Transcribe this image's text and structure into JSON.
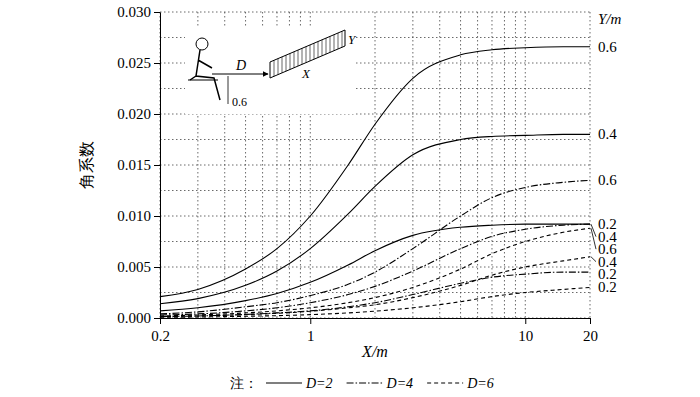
{
  "chart_data": {
    "type": "line",
    "y_label": "角系数",
    "x_label": "X/m",
    "series_title": "Y/m",
    "log": "x",
    "grid": true,
    "xlim": [
      0.2,
      20
    ],
    "ylim": [
      0,
      0.03
    ],
    "xticks": [
      0.2,
      1,
      10,
      20
    ],
    "yticks": [
      {
        "value": 0,
        "label": "0.000"
      },
      {
        "value": 0.005,
        "label": "0.005"
      },
      {
        "value": 0.01,
        "label": "0.010"
      },
      {
        "value": 0.015,
        "label": "0.015"
      },
      {
        "value": 0.02,
        "label": "0.020"
      },
      {
        "value": 0.025,
        "label": "0.025"
      },
      {
        "value": 0.03,
        "label": "0.030"
      }
    ],
    "x_minor_ticks": [
      0.2,
      0.3,
      0.4,
      0.5,
      0.6,
      0.7,
      0.8,
      0.9,
      1,
      2,
      3,
      4,
      5,
      6,
      7,
      8,
      9,
      10,
      20
    ],
    "y_minor_ticks": [
      0,
      0.0025,
      0.005,
      0.0075,
      0.01,
      0.0125,
      0.015,
      0.0175,
      0.02,
      0.0225,
      0.025,
      0.0275,
      0.03
    ],
    "x": [
      0.2,
      0.3,
      0.5,
      0.7,
      1,
      1.5,
      2,
      3,
      5,
      7,
      10,
      15,
      20
    ],
    "series": [
      {
        "name": "0.6",
        "color": "#000000",
        "line_style": "solid",
        "values": [
          0.0021,
          0.0028,
          0.0048,
          0.0068,
          0.01,
          0.015,
          0.019,
          0.0235,
          0.0258,
          0.0263,
          0.0265,
          0.0266,
          0.0266
        ]
      },
      {
        "name": "0.4",
        "color": "#000000",
        "line_style": "solid",
        "values": [
          0.0014,
          0.0019,
          0.0032,
          0.0046,
          0.0068,
          0.0102,
          0.0129,
          0.016,
          0.0175,
          0.0178,
          0.0179,
          0.018,
          0.018
        ]
      },
      {
        "name": "0.6",
        "color": "#000000",
        "line_style": "dashdot",
        "values": [
          0.0004,
          0.0006,
          0.0011,
          0.0015,
          0.0022,
          0.0033,
          0.0045,
          0.0068,
          0.01,
          0.0118,
          0.0128,
          0.0133,
          0.0135
        ]
      },
      {
        "name": "0.2",
        "color": "#000000",
        "line_style": "solid",
        "values": [
          0.0007,
          0.001,
          0.0017,
          0.0024,
          0.0035,
          0.0052,
          0.0066,
          0.0081,
          0.0089,
          0.0091,
          0.0092,
          0.0092,
          0.0092
        ]
      },
      {
        "name": "0.4",
        "color": "#000000",
        "line_style": "dashdot",
        "values": [
          0.0003,
          0.0004,
          0.0007,
          0.001,
          0.0015,
          0.0023,
          0.0031,
          0.0046,
          0.0068,
          0.008,
          0.0087,
          0.0091,
          0.0092
        ]
      },
      {
        "name": "0.6",
        "color": "#000000",
        "line_style": "dashed",
        "values": [
          0.0002,
          0.0003,
          0.0005,
          0.0007,
          0.001,
          0.0015,
          0.002,
          0.003,
          0.0048,
          0.0063,
          0.0075,
          0.0084,
          0.0088
        ]
      },
      {
        "name": "0.4",
        "color": "#000000",
        "line_style": "dashed",
        "values": [
          0.00013,
          0.0002,
          0.00033,
          0.00046,
          0.00066,
          0.001,
          0.0013,
          0.002,
          0.0032,
          0.0042,
          0.005,
          0.0056,
          0.006
        ]
      },
      {
        "name": "0.2",
        "color": "#000000",
        "line_style": "dashdot",
        "values": [
          0.00015,
          0.0002,
          0.00035,
          0.0005,
          0.0007,
          0.0011,
          0.0015,
          0.0023,
          0.0034,
          0.004,
          0.0043,
          0.0045,
          0.0045
        ]
      },
      {
        "name": "0.2",
        "color": "#000000",
        "line_style": "dashed",
        "values": [
          7e-05,
          0.0001,
          0.00017,
          0.00023,
          0.00033,
          0.0005,
          0.00067,
          0.001,
          0.0016,
          0.0021,
          0.0025,
          0.0028,
          0.003
        ]
      }
    ],
    "note": {
      "label": "注：",
      "items": [
        {
          "name": "D=2",
          "line_style": "solid"
        },
        {
          "name": "D=4",
          "line_style": "dashdot"
        },
        {
          "name": "D=6",
          "line_style": "dashed"
        }
      ]
    },
    "inset_labels": [
      "D",
      "0.6",
      "X",
      "Y"
    ]
  }
}
